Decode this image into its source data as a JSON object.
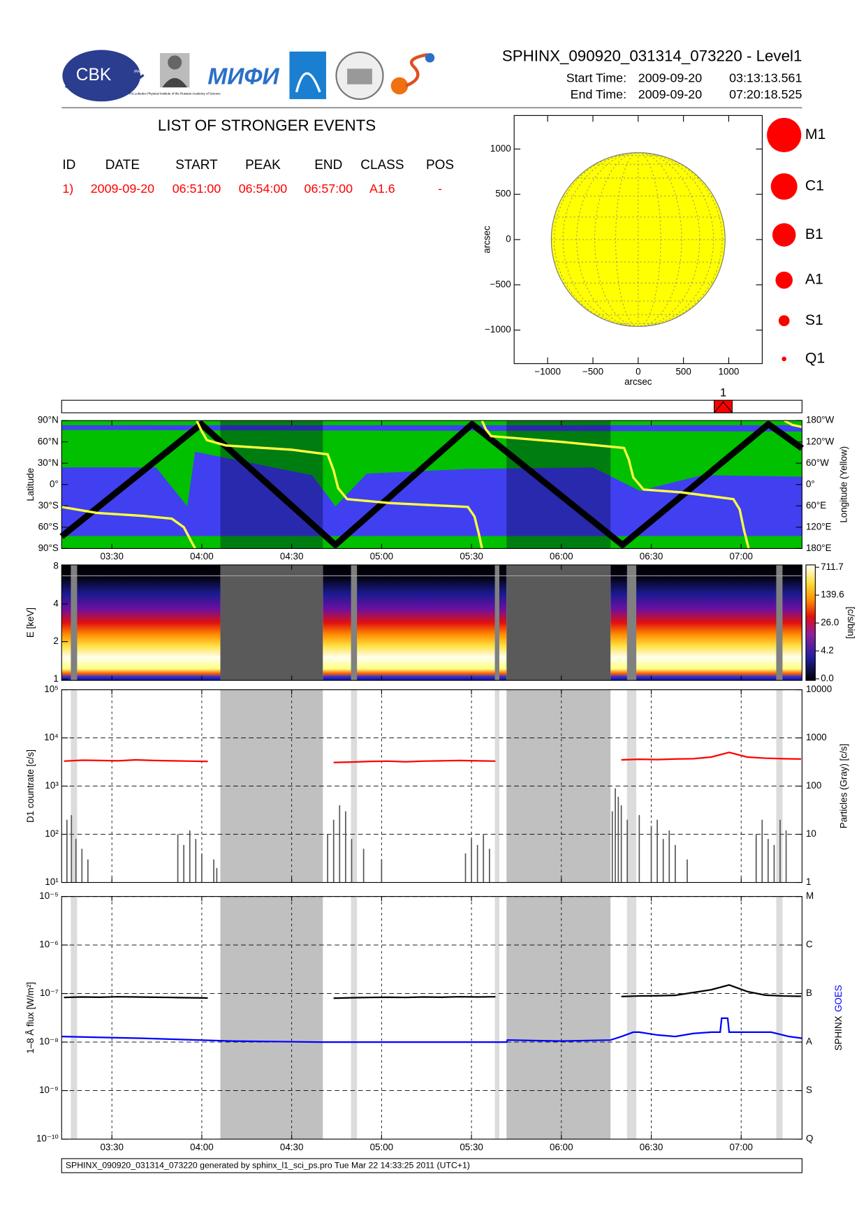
{
  "header": {
    "title": "SPHINX_090920_031314_073220 - Level1",
    "start_label": "Start Time:",
    "start_date": "2009-09-20",
    "start_time": "03:13:13.561",
    "end_label": "End Time:",
    "end_date": "2009-09-20",
    "end_time": "07:20:18.525"
  },
  "logos": {
    "cbk": "CBK",
    "pan": "PAN",
    "lebedev": "P.N.Lebedev Physical Institute of the Russian Academy of Science",
    "mifi": "МИФИ"
  },
  "events": {
    "title": "LIST OF STRONGER EVENTS",
    "columns": [
      "ID",
      "DATE",
      "START",
      "PEAK",
      "END",
      "CLASS",
      "POS"
    ],
    "rows": [
      [
        "1)",
        "2009-09-20",
        "06:51:00",
        "06:54:00",
        "06:57:00",
        "A1.6",
        "-"
      ]
    ]
  },
  "flare_classes": [
    "M1",
    "C1",
    "B1",
    "A1",
    "S1",
    "Q1"
  ],
  "footer": "SPHINX_090920_031314_073220 generated by sphinx_l1_sci_ps.pro Tue Mar 22 14:33:25 2011 (UTC+1)",
  "chart_data": [
    {
      "type": "disk",
      "xlabel": "arcsec",
      "ylabel": "arcsec",
      "xlim": [
        -1370,
        1370
      ],
      "ylim": [
        -1370,
        1370
      ],
      "radius": 960,
      "color": "#ffff00",
      "xticks": [
        {
          "value": -1000,
          "label": "−1000"
        },
        {
          "value": -500,
          "label": "−500"
        },
        0,
        500,
        1000
      ],
      "yticks": [
        {
          "value": -1000,
          "label": "−1000"
        },
        {
          "value": -500,
          "label": "−500"
        },
        0,
        500,
        1000
      ]
    },
    {
      "type": "timeseries",
      "xlim": [
        193.23,
        440.31
      ],
      "xticks": [
        {
          "value": 210,
          "label": "03:30"
        },
        {
          "value": 240,
          "label": "04:00"
        },
        {
          "value": 270,
          "label": "04:30"
        },
        {
          "value": 300,
          "label": "05:00"
        },
        {
          "value": 330,
          "label": "05:30"
        },
        {
          "value": 360,
          "label": "06:00"
        },
        {
          "value": 390,
          "label": "06:30"
        },
        {
          "value": 420,
          "label": "07:00"
        }
      ],
      "gaps": [
        [
          246.2,
          280.4
        ],
        [
          341.7,
          376.4
        ]
      ],
      "short_gaps": [
        [
          196.3,
          198.4
        ],
        [
          289.8,
          291.8
        ],
        [
          337.8,
          339.3
        ],
        [
          381.9,
          385.0
        ],
        [
          431.7,
          433.8
        ]
      ],
      "event_marker": {
        "label": "1",
        "start": 411,
        "peak": 414,
        "end": 417
      },
      "panels": [
        {
          "type": "line",
          "ylabel": "Latitude",
          "y2label": "Longitude (Yellow)",
          "ylim": [
            -90,
            90
          ],
          "yticks": [
            {
              "value": 90,
              "label": "90°N"
            },
            {
              "value": 60,
              "label": "60°N"
            },
            {
              "value": 30,
              "label": "30°N"
            },
            {
              "value": 0,
              "label": "0°"
            },
            {
              "value": -30,
              "label": "30°S"
            },
            {
              "value": -60,
              "label": "60°S"
            },
            {
              "value": -90,
              "label": "90°S"
            }
          ],
          "y2lim": [
            -180,
            180
          ],
          "y2ticks": [
            {
              "value": 180,
              "label": "180°W"
            },
            {
              "value": 120,
              "label": "120°W"
            },
            {
              "value": 60,
              "label": "60°W"
            },
            {
              "value": 0,
              "label": "0°"
            },
            {
              "value": -60,
              "label": "60°E"
            },
            {
              "value": -120,
              "label": "120°E"
            },
            {
              "value": -180,
              "label": "180°E"
            }
          ],
          "series": [
            {
              "color": "#000000",
              "x": [
                193.23,
                239.8,
                284.6,
                330.2,
                380.4,
                429.1,
                440.31
              ],
              "values": [
                -73,
                85,
                -85,
                85,
                -85,
                85,
                51
              ]
            },
            {
              "color": "#ffff40",
              "axis": "y2",
              "x": [
                193.23,
                205,
                220,
                230,
                234,
                236.5,
                237.8,
                238.05,
                238.3,
                240,
                241.7,
                248,
                270,
                282,
                284,
                285.5,
                288.5,
                302.8,
                328.8,
                331.0,
                332.5,
                333.5,
                333.5,
                333.5,
                334.8,
                336.6,
                360,
                380.9,
                382.5,
                384,
                387.4,
                400,
                417.4,
                419.5,
                421,
                422.5,
                428,
                434.4,
                437,
                440.31
              ],
              "values": [
                -63,
                -80,
                -88,
                -96,
                -120,
                -160,
                -180,
                null,
                180,
                150,
                125,
                110,
                98,
                85,
                40,
                -10,
                -41,
                -52,
                -63,
                -90,
                -140,
                -180,
                null,
                180,
                155,
                136,
                120,
                103,
                70,
                20,
                -14,
                -22,
                -41,
                -70,
                -130,
                -180,
                null,
                180,
                168,
                162
              ]
            }
          ]
        },
        {
          "type": "heatmap",
          "ylabel": "E [keV]",
          "ylog": true,
          "ylim": [
            0.98,
            8.2
          ],
          "yticks": [
            1,
            2,
            4,
            8
          ],
          "colorbar": {
            "label": "[c/s/bin]",
            "ticks": [
              {
                "value": 0,
                "label": "0.0"
              },
              4.2,
              {
                "value": 26,
                "label": "26.0"
              },
              139.6,
              711.7
            ]
          }
        },
        {
          "type": "line",
          "ylabel": "D1 countrate [c/s]",
          "y2label": "Particles (Gray) [c/s]",
          "ylog": true,
          "ylim": [
            10,
            100000
          ],
          "yticks": [
            {
              "value": 10,
              "label": "10¹"
            },
            {
              "value": 100,
              "label": "10²"
            },
            {
              "value": 1000,
              "label": "10³"
            },
            {
              "value": 10000,
              "label": "10⁴"
            },
            {
              "value": 100000,
              "label": "10⁵"
            }
          ],
          "y2lim": [
            1,
            10000
          ],
          "y2ticks": [
            1,
            10,
            100,
            1000,
            10000
          ],
          "series": [
            {
              "color": "#ff0000",
              "x": [
                194,
                200,
                206,
                212,
                218,
                224,
                230,
                236,
                242,
                248,
                254,
                260,
                266,
                272,
                278,
                284,
                290,
                296,
                302,
                308,
                314,
                320,
                326,
                332,
                338,
                344,
                350,
                356,
                362,
                368,
                374,
                380,
                386,
                392,
                398,
                404,
                410,
                416,
                422,
                428,
                434,
                440
              ],
              "values": [
                3300,
                3450,
                3400,
                3350,
                3500,
                3400,
                3350,
                3300,
                3250,
                null,
                null,
                null,
                null,
                null,
                null,
                3100,
                3150,
                3250,
                3300,
                3200,
                3300,
                3350,
                3400,
                3350,
                3300,
                null,
                null,
                null,
                null,
                null,
                null,
                3500,
                3600,
                3550,
                3650,
                3700,
                4000,
                5000,
                4000,
                3800,
                3700,
                3650
              ]
            },
            {
              "color": "#555555",
              "axis": "y2",
              "style": "spikes",
              "x": [
                195,
                196.5,
                198,
                200,
                202,
                232,
                234,
                236,
                238,
                240,
                244,
                245,
                282,
                284,
                286,
                288,
                290,
                294,
                300,
                328,
                330,
                332,
                334,
                336,
                377,
                378,
                379,
                380,
                382,
                386,
                390,
                392,
                394,
                396,
                398,
                402,
                425,
                427,
                429,
                431,
                433,
                435
              ],
              "values": [
                20,
                25,
                8,
                5,
                3,
                10,
                6,
                12,
                8,
                4,
                3,
                2,
                10,
                20,
                40,
                30,
                8,
                5,
                3,
                4,
                8,
                6,
                10,
                5,
                30,
                90,
                60,
                40,
                20,
                25,
                15,
                20,
                8,
                12,
                6,
                3,
                10,
                20,
                8,
                6,
                20,
                12
              ]
            }
          ]
        },
        {
          "type": "line",
          "ylabel": "1–8 Å flux [W/m²]",
          "ylog": true,
          "ylim": [
            1e-10,
            1e-05
          ],
          "yticks": [
            {
              "value": 1e-10,
              "label": "10⁻¹⁰"
            },
            {
              "value": 1e-09,
              "label": "10⁻⁹"
            },
            {
              "value": 1e-08,
              "label": "10⁻⁸"
            },
            {
              "value": 1e-07,
              "label": "10⁻⁷"
            },
            {
              "value": 1e-06,
              "label": "10⁻⁶"
            },
            {
              "value": 1e-05,
              "label": "10⁻⁵"
            }
          ],
          "y2lim": [
            1e-10,
            1e-05
          ],
          "y2ticks": [
            {
              "value": 1e-05,
              "label": "M"
            },
            {
              "value": 1e-06,
              "label": "C"
            },
            {
              "value": 1e-07,
              "label": "B"
            },
            {
              "value": 1e-08,
              "label": "A"
            },
            {
              "value": 1e-09,
              "label": "S"
            },
            {
              "value": 1e-10,
              "label": "Q"
            }
          ],
          "series": [
            {
              "name": "SPHINX",
              "color": "#000000",
              "x": [
                194,
                200,
                206,
                212,
                218,
                224,
                230,
                236,
                242,
                248,
                254,
                260,
                266,
                272,
                278,
                284,
                290,
                296,
                302,
                308,
                314,
                320,
                326,
                332,
                338,
                344,
                350,
                356,
                362,
                368,
                374,
                380,
                386,
                392,
                398,
                404,
                410,
                416,
                422,
                428,
                434,
                440
              ],
              "values": [
                8.3e-08,
                8.5e-08,
                8.4e-08,
                8.6e-08,
                8.5e-08,
                8.4e-08,
                8.3e-08,
                8.2e-08,
                8.1e-08,
                null,
                null,
                null,
                null,
                null,
                null,
                8e-08,
                8.2e-08,
                8.3e-08,
                8.4e-08,
                8.3e-08,
                8.5e-08,
                8.4e-08,
                8.6e-08,
                8.5e-08,
                8.6e-08,
                null,
                null,
                null,
                null,
                null,
                null,
                8.7e-08,
                8.9e-08,
                9e-08,
                9.2e-08,
                1.05e-07,
                1.2e-07,
                1.5e-07,
                1.1e-07,
                9.3e-08,
                8.9e-08,
                8.8e-08
              ]
            },
            {
              "name": "GOES",
              "color": "#0000ff",
              "x": [
                193.23,
                220,
                250,
                280,
                300,
                341.7,
                342,
                360,
                376.4,
                380,
                384,
                386,
                392,
                398,
                404,
                410,
                413,
                413.5,
                415.5,
                416,
                420,
                430,
                436,
                440.31
              ],
              "values": [
                1.3e-08,
                1.2e-08,
                1.05e-08,
                1e-08,
                1e-08,
                1e-08,
                1.1e-08,
                1.05e-08,
                1.1e-08,
                1.3e-08,
                1.6e-08,
                1.6e-08,
                1.4e-08,
                1.3e-08,
                1.5e-08,
                1.6e-08,
                1.6e-08,
                3.1e-08,
                3.1e-08,
                1.6e-08,
                1.6e-08,
                1.6e-08,
                1.3e-08,
                1.2e-08
              ]
            }
          ]
        }
      ]
    }
  ]
}
